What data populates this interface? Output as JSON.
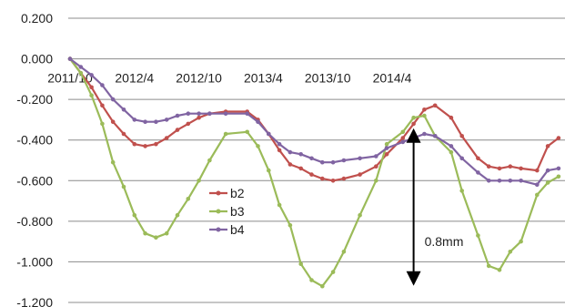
{
  "chart_data": {
    "type": "line",
    "title": "",
    "xlabel": "",
    "ylabel": "",
    "ylim": [
      -1.2,
      0.2
    ],
    "y_ticks": [
      "0.200",
      "0.000",
      "-0.200",
      "-0.400",
      "-0.600",
      "-0.800",
      "-1.000",
      "-1.200"
    ],
    "y_tick_values": [
      0.2,
      0.0,
      -0.2,
      -0.4,
      -0.6,
      -0.8,
      -1.0,
      -1.2
    ],
    "x_ticks": [
      "2011/10",
      "2012/4",
      "2012/10",
      "2013/4",
      "2013/10",
      "2014/4"
    ],
    "x_tick_indices": [
      0,
      12,
      24,
      36,
      48,
      60
    ],
    "x_count": 66,
    "grid": "horizontal",
    "legend_position": "center-left",
    "series": [
      {
        "name": "b2",
        "color": "#c0504d",
        "points": [
          [
            0,
            0.0
          ],
          [
            2,
            -0.07
          ],
          [
            4,
            -0.14
          ],
          [
            6,
            -0.23
          ],
          [
            8,
            -0.31
          ],
          [
            10,
            -0.37
          ],
          [
            12,
            -0.42
          ],
          [
            14,
            -0.43
          ],
          [
            16,
            -0.42
          ],
          [
            18,
            -0.39
          ],
          [
            20,
            -0.35
          ],
          [
            22,
            -0.32
          ],
          [
            24,
            -0.29
          ],
          [
            26,
            -0.27
          ],
          [
            29,
            -0.26
          ],
          [
            33,
            -0.26
          ],
          [
            35,
            -0.3
          ],
          [
            37,
            -0.37
          ],
          [
            39,
            -0.45
          ],
          [
            41,
            -0.52
          ],
          [
            43,
            -0.54
          ],
          [
            45,
            -0.57
          ],
          [
            47,
            -0.59
          ],
          [
            49,
            -0.6
          ],
          [
            51,
            -0.59
          ],
          [
            54,
            -0.57
          ],
          [
            57,
            -0.53
          ],
          [
            59,
            -0.47
          ],
          [
            62,
            -0.39
          ],
          [
            64,
            -0.32
          ],
          [
            66,
            -0.25
          ],
          [
            68,
            -0.23
          ],
          [
            71,
            -0.29
          ],
          [
            73,
            -0.38
          ],
          [
            76,
            -0.49
          ],
          [
            78,
            -0.53
          ],
          [
            80,
            -0.54
          ],
          [
            82,
            -0.53
          ],
          [
            84,
            -0.54
          ],
          [
            87,
            -0.55
          ],
          [
            89,
            -0.43
          ],
          [
            91,
            -0.39
          ]
        ]
      },
      {
        "name": "b3",
        "color": "#9bbb59",
        "points": [
          [
            0,
            0.0
          ],
          [
            2,
            -0.07
          ],
          [
            4,
            -0.18
          ],
          [
            6,
            -0.32
          ],
          [
            8,
            -0.51
          ],
          [
            10,
            -0.63
          ],
          [
            12,
            -0.77
          ],
          [
            14,
            -0.86
          ],
          [
            16,
            -0.88
          ],
          [
            18,
            -0.86
          ],
          [
            20,
            -0.77
          ],
          [
            22,
            -0.69
          ],
          [
            24,
            -0.6
          ],
          [
            26,
            -0.5
          ],
          [
            29,
            -0.37
          ],
          [
            33,
            -0.36
          ],
          [
            35,
            -0.43
          ],
          [
            37,
            -0.55
          ],
          [
            39,
            -0.72
          ],
          [
            41,
            -0.82
          ],
          [
            43,
            -1.01
          ],
          [
            45,
            -1.09
          ],
          [
            47,
            -1.12
          ],
          [
            49,
            -1.05
          ],
          [
            51,
            -0.95
          ],
          [
            54,
            -0.77
          ],
          [
            57,
            -0.6
          ],
          [
            59,
            -0.42
          ],
          [
            62,
            -0.36
          ],
          [
            64,
            -0.29
          ],
          [
            66,
            -0.28
          ],
          [
            68,
            -0.38
          ],
          [
            71,
            -0.46
          ],
          [
            73,
            -0.65
          ],
          [
            76,
            -0.87
          ],
          [
            78,
            -1.02
          ],
          [
            80,
            -1.04
          ],
          [
            82,
            -0.95
          ],
          [
            84,
            -0.9
          ],
          [
            87,
            -0.67
          ],
          [
            89,
            -0.61
          ],
          [
            91,
            -0.58
          ]
        ]
      },
      {
        "name": "b4",
        "color": "#8064a2",
        "points": [
          [
            0,
            0.0
          ],
          [
            2,
            -0.04
          ],
          [
            4,
            -0.08
          ],
          [
            6,
            -0.13
          ],
          [
            8,
            -0.2
          ],
          [
            10,
            -0.25
          ],
          [
            12,
            -0.3
          ],
          [
            14,
            -0.31
          ],
          [
            16,
            -0.31
          ],
          [
            18,
            -0.3
          ],
          [
            20,
            -0.28
          ],
          [
            22,
            -0.27
          ],
          [
            24,
            -0.27
          ],
          [
            26,
            -0.27
          ],
          [
            29,
            -0.27
          ],
          [
            33,
            -0.27
          ],
          [
            35,
            -0.31
          ],
          [
            37,
            -0.37
          ],
          [
            39,
            -0.42
          ],
          [
            41,
            -0.46
          ],
          [
            43,
            -0.47
          ],
          [
            45,
            -0.49
          ],
          [
            47,
            -0.51
          ],
          [
            49,
            -0.51
          ],
          [
            51,
            -0.5
          ],
          [
            54,
            -0.49
          ],
          [
            57,
            -0.48
          ],
          [
            59,
            -0.44
          ],
          [
            62,
            -0.41
          ],
          [
            64,
            -0.39
          ],
          [
            66,
            -0.37
          ],
          [
            68,
            -0.38
          ],
          [
            71,
            -0.43
          ],
          [
            73,
            -0.49
          ],
          [
            76,
            -0.56
          ],
          [
            78,
            -0.6
          ],
          [
            80,
            -0.6
          ],
          [
            82,
            -0.6
          ],
          [
            84,
            -0.6
          ],
          [
            87,
            -0.62
          ],
          [
            89,
            -0.55
          ],
          [
            91,
            -0.54
          ]
        ]
      }
    ],
    "annotation": {
      "label": "0.8mm",
      "arrow_x": 64,
      "arrow_y_top": -0.36,
      "arrow_y_bottom": -1.1,
      "label_y": -0.9
    }
  }
}
